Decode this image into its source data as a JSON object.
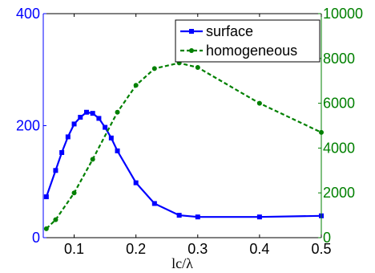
{
  "chart_data": {
    "type": "line",
    "xlabel": "lc/λ",
    "x_ticks": [
      "0.1",
      "0.2",
      "0.3",
      "0.4",
      "0.5"
    ],
    "xlim": [
      0.05,
      0.5
    ],
    "left_axis": {
      "ylim": [
        0,
        400
      ],
      "ticks": [
        "0",
        "200",
        "400"
      ],
      "color": "#0000ff"
    },
    "right_axis": {
      "ylim": [
        0,
        10000
      ],
      "ticks": [
        "0",
        "2000",
        "4000",
        "6000",
        "8000",
        "10000"
      ],
      "color": "#008000"
    },
    "legend_position": "top-right",
    "grid": false,
    "series": [
      {
        "name": "surface",
        "axis": "left",
        "color": "#0000ff",
        "line_style": "solid",
        "marker": "square",
        "x": [
          0.055,
          0.07,
          0.08,
          0.09,
          0.1,
          0.11,
          0.12,
          0.13,
          0.14,
          0.15,
          0.16,
          0.17,
          0.2,
          0.23,
          0.27,
          0.3,
          0.4,
          0.5
        ],
        "y": [
          73,
          120,
          152,
          180,
          203,
          215,
          224,
          222,
          213,
          197,
          178,
          155,
          98,
          61,
          40,
          37,
          37,
          39
        ]
      },
      {
        "name": "homogeneous",
        "axis": "right",
        "color": "#008000",
        "line_style": "dashed",
        "marker": "circle",
        "x": [
          0.055,
          0.07,
          0.1,
          0.13,
          0.17,
          0.2,
          0.23,
          0.27,
          0.3,
          0.4,
          0.5
        ],
        "y": [
          400,
          800,
          2000,
          3500,
          5600,
          6800,
          7550,
          7800,
          7600,
          6000,
          4700
        ]
      }
    ]
  }
}
